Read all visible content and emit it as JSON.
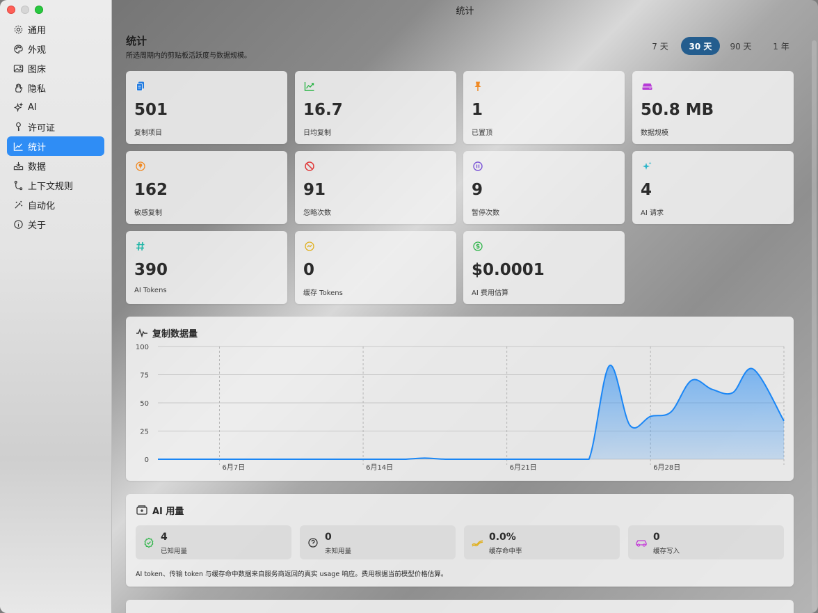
{
  "window": {
    "title": "统计"
  },
  "sidebar": {
    "items": [
      {
        "label": "通用",
        "icon": "gear-icon"
      },
      {
        "label": "外观",
        "icon": "palette-icon"
      },
      {
        "label": "图床",
        "icon": "photo-icon"
      },
      {
        "label": "隐私",
        "icon": "hand-icon"
      },
      {
        "label": "AI",
        "icon": "sparkles-icon"
      },
      {
        "label": "许可证",
        "icon": "key-icon"
      },
      {
        "label": "统计",
        "icon": "chart-icon",
        "active": true
      },
      {
        "label": "数据",
        "icon": "tray-icon"
      },
      {
        "label": "上下文规则",
        "icon": "branch-icon"
      },
      {
        "label": "自动化",
        "icon": "wand-icon"
      },
      {
        "label": "关于",
        "icon": "info-icon"
      }
    ]
  },
  "header": {
    "title": "统计",
    "subtitle": "所选周期内的剪贴板活跃度与数据规模。"
  },
  "periods": [
    "7 天",
    "30 天",
    "90 天",
    "1 年"
  ],
  "selected_period": "30 天",
  "cards": [
    {
      "value": "501",
      "label": "复制项目",
      "icon": "doc-copy-icon",
      "color": "#1f7ae0"
    },
    {
      "value": "16.7",
      "label": "日均复制",
      "icon": "trend-up-icon",
      "color": "#2fb54a"
    },
    {
      "value": "1",
      "label": "已置顶",
      "icon": "pin-icon",
      "color": "#f08a24"
    },
    {
      "value": "50.8 MB",
      "label": "数据规模",
      "icon": "storage-icon",
      "color": "#b63bd6"
    },
    {
      "value": "162",
      "label": "敏感复制",
      "icon": "lock-circle-icon",
      "color": "#f08a24"
    },
    {
      "value": "91",
      "label": "忽略次数",
      "icon": "prohibit-icon",
      "color": "#e03b3b"
    },
    {
      "value": "9",
      "label": "暂停次数",
      "icon": "pause-circle-icon",
      "color": "#7b55d6"
    },
    {
      "value": "4",
      "label": "AI 请求",
      "icon": "sparkles-icon",
      "color": "#2bb5c9"
    },
    {
      "value": "390",
      "label": "AI Tokens",
      "icon": "hash-icon",
      "color": "#1fb5a6"
    },
    {
      "value": "0",
      "label": "缓存 Tokens",
      "icon": "cache-icon",
      "color": "#e0b01f"
    },
    {
      "value": "$0.0001",
      "label": "AI 费用估算",
      "icon": "dollar-icon",
      "color": "#2fb54a"
    }
  ],
  "chart_panel": {
    "title": "复制数据量",
    "icon": "waveform-icon"
  },
  "chart_data": {
    "type": "area",
    "title": "复制数据量",
    "ylim": [
      0,
      100
    ],
    "yticks": [
      0,
      25,
      50,
      75,
      100
    ],
    "xtick_labels": [
      "6月7日",
      "6月14日",
      "6月21日",
      "6月28日"
    ],
    "xtick_days": [
      7,
      14,
      21,
      28
    ],
    "x_days": [
      4,
      5,
      6,
      7,
      8,
      9,
      10,
      11,
      12,
      13,
      14,
      15,
      16,
      17,
      18,
      19,
      20,
      21,
      22,
      23,
      24,
      25,
      26,
      27,
      28,
      29,
      30,
      31,
      32,
      33
    ],
    "values": [
      0,
      0,
      0,
      0,
      0,
      0,
      0,
      0,
      0,
      0,
      0,
      0,
      0,
      1,
      0,
      0,
      0,
      0,
      0,
      0,
      0,
      0,
      83,
      30,
      38,
      42,
      70,
      62,
      59,
      80
    ],
    "last_value": 34,
    "color": "#1a86f5"
  },
  "ai_usage": {
    "title": "AI 用量",
    "items": [
      {
        "value": "4",
        "label": "已知用量",
        "icon": "check-seal-icon",
        "color": "#2fb54a"
      },
      {
        "value": "0",
        "label": "未知用量",
        "icon": "question-circle-icon",
        "color": "#333333"
      },
      {
        "value": "0.0%",
        "label": "缓存命中率",
        "icon": "bolt-wave-icon",
        "color": "#e0b01f"
      },
      {
        "value": "0",
        "label": "缓存写入",
        "icon": "car-icon",
        "color": "#c23bd6"
      }
    ],
    "note": "AI token、传输 token 与缓存命中数据来自服务商返回的真实 usage 响应。费用根据当前模型价格估算。"
  }
}
